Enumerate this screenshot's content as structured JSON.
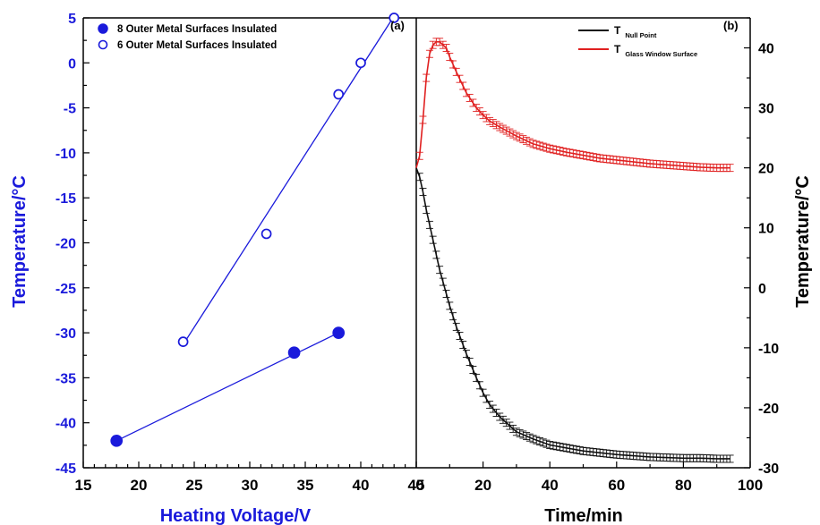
{
  "chart_data": [
    {
      "panel": "(a)",
      "type": "scatter",
      "xlabel": "Heating Voltage/V",
      "ylabel": "Temperature/°C",
      "xlim": [
        15,
        45
      ],
      "ylim": [
        -45,
        5
      ],
      "xticks": [
        "15",
        "20",
        "25",
        "30",
        "35",
        "40",
        "45"
      ],
      "yticks": [
        "5",
        "0",
        "-5",
        "-10",
        "-15",
        "-20",
        "-25",
        "-30",
        "-35",
        "-40",
        "-45"
      ],
      "color": "#1a1adb",
      "legend_position": "top-left",
      "series": [
        {
          "name": "8 Outer Metal Surfaces Insulated",
          "marker": "filled-circle",
          "x": [
            18,
            34,
            38
          ],
          "y": [
            -42,
            -32.2,
            -30
          ],
          "fit_line": [
            [
              18,
              -42
            ],
            [
              38,
              -30
            ]
          ]
        },
        {
          "name": "6 Outer Metal Surfaces Insulated",
          "marker": "open-circle",
          "x": [
            24,
            31.5,
            38,
            40,
            43
          ],
          "y": [
            -31,
            -19,
            -3.5,
            0,
            5
          ],
          "fit_line": [
            [
              24,
              -31.3
            ],
            [
              43,
              5.2
            ]
          ]
        }
      ]
    },
    {
      "panel": "(b)",
      "type": "line",
      "xlabel": "Time/min",
      "ylabel": "Temperature/°C",
      "xlim": [
        0,
        100
      ],
      "ylim": [
        -30,
        45
      ],
      "xticks": [
        "0",
        "20",
        "40",
        "60",
        "80",
        "100"
      ],
      "yticks": [
        "-30",
        "-20",
        "-10",
        "0",
        "10",
        "20",
        "30",
        "40"
      ],
      "error_bars": true,
      "legend_position": "top-right",
      "series": [
        {
          "name_main": "T",
          "name_sub": "Null Point",
          "color": "#111111",
          "x": [
            0,
            1,
            2,
            3,
            5,
            7,
            10,
            12,
            15,
            18,
            20,
            22,
            25,
            30,
            35,
            40,
            45,
            50,
            55,
            60,
            65,
            70,
            75,
            80,
            85,
            90,
            94
          ],
          "y": [
            20,
            18.5,
            16,
            13,
            8,
            3,
            -3,
            -6.5,
            -11,
            -15,
            -17.5,
            -19.5,
            -21.5,
            -24,
            -25.2,
            -26.2,
            -26.7,
            -27.2,
            -27.5,
            -27.8,
            -28,
            -28.2,
            -28.3,
            -28.4,
            -28.4,
            -28.5,
            -28.5
          ]
        },
        {
          "name_main": "T",
          "name_sub": "Glass Window Surface",
          "color": "#e02020",
          "x": [
            0,
            1,
            2,
            3,
            4,
            5,
            6,
            7,
            8,
            9,
            10,
            12,
            15,
            18,
            20,
            22,
            25,
            30,
            35,
            40,
            45,
            50,
            55,
            60,
            65,
            70,
            75,
            80,
            85,
            90,
            94
          ],
          "y": [
            20,
            22,
            28,
            35,
            39,
            40.5,
            41,
            41,
            40.5,
            40,
            38.5,
            36,
            32.5,
            30,
            28.8,
            27.8,
            26.8,
            25.3,
            24,
            23.2,
            22.6,
            22.1,
            21.6,
            21.3,
            21,
            20.7,
            20.5,
            20.3,
            20.1,
            20,
            20
          ]
        }
      ]
    }
  ]
}
